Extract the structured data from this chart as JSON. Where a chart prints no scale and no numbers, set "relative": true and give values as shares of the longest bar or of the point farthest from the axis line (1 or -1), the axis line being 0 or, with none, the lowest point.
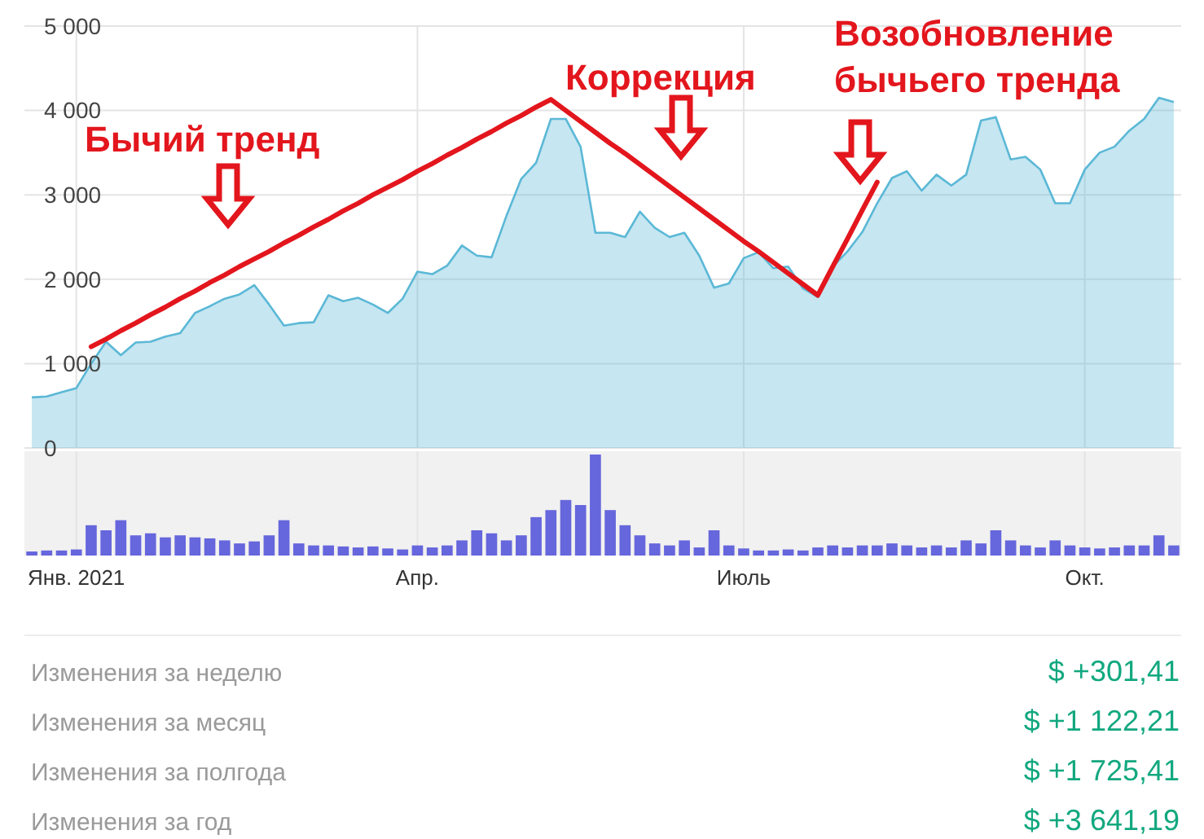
{
  "chart_data": [
    {
      "type": "area",
      "grid": true,
      "tick_labels": "y",
      "categories": [
        null,
        null,
        null,
        null,
        null,
        null,
        null,
        null,
        null,
        null,
        null,
        null,
        null,
        null,
        null,
        null,
        null,
        null,
        null,
        null,
        null,
        null,
        null,
        null,
        null,
        null,
        null,
        null,
        null,
        null,
        null,
        null,
        null,
        null,
        null,
        null,
        null,
        null,
        null,
        null,
        null,
        null,
        null,
        null,
        null,
        null,
        null,
        null,
        null,
        null,
        null,
        null,
        null,
        null,
        null,
        null,
        null,
        null,
        null,
        null,
        null,
        null,
        null,
        null,
        null,
        null,
        null,
        null,
        null,
        null,
        null,
        null,
        null,
        null,
        null,
        null,
        null,
        null
      ],
      "ylim": [
        0,
        5000
      ],
      "yticks": [
        {
          "value": 0,
          "label": "0"
        },
        {
          "value": 1000,
          "label": "1 000"
        },
        {
          "value": 2000,
          "label": "2 000"
        },
        {
          "value": 3000,
          "label": "3 000"
        },
        {
          "value": 4000,
          "label": "4 000"
        },
        {
          "value": 5000,
          "label": "5 000"
        }
      ],
      "annotations": [
        "Бычий тренд",
        "Коррекция",
        "Возобновление бычьего тренда"
      ],
      "series": [
        {
          "type": "area",
          "color": "#5bb8d6",
          "values": [
            600,
            610,
            660,
            710,
            1000,
            1260,
            1100,
            1250,
            1260,
            1320,
            1360,
            1600,
            1680,
            1770,
            1820,
            1930,
            1700,
            1450,
            1480,
            1490,
            1810,
            1740,
            1780,
            1700,
            1600,
            1770,
            2090,
            2060,
            2160,
            2400,
            2280,
            2260,
            2750,
            3190,
            3380,
            3900,
            3900,
            3570,
            2550,
            2550,
            2500,
            2800,
            2610,
            2500,
            2550,
            2280,
            1900,
            1950,
            2250,
            2320,
            2130,
            2150,
            1890,
            1790,
            2150,
            2330,
            2560,
            2900,
            3200,
            3280,
            3050,
            3240,
            3110,
            3240,
            3880,
            3920,
            3420,
            3450,
            3300,
            2900,
            2900,
            3300,
            3500,
            3570,
            3760,
            3900,
            4150,
            4100
          ]
        },
        {
          "type": "line",
          "color": "#e3161d",
          "values": [
            null,
            null,
            null,
            null,
            1200,
            1290,
            1390,
            1480,
            1580,
            1670,
            1770,
            1860,
            1960,
            2050,
            2150,
            2240,
            2330,
            2430,
            2520,
            2620,
            2710,
            2810,
            2900,
            3000,
            3090,
            3180,
            3280,
            3370,
            3470,
            3560,
            3660,
            3750,
            3850,
            3940,
            4040,
            4130,
            4000,
            3870,
            3740,
            3610,
            3490,
            3360,
            3230,
            3100,
            2970,
            2840,
            2710,
            2580,
            2450,
            2330,
            2200,
            2070,
            1940,
            1810,
            2150,
            2480,
            2820,
            3150,
            null,
            null,
            null,
            null,
            null,
            null,
            null,
            null,
            null,
            null,
            null,
            null,
            null,
            null,
            null,
            null,
            null,
            null,
            null,
            null
          ]
        }
      ]
    },
    {
      "type": "bar",
      "relative": true,
      "color": "#6666dd",
      "grid": "x",
      "categories": [
        null,
        null,
        null,
        "Янв. 2021",
        null,
        null,
        null,
        null,
        null,
        null,
        null,
        null,
        null,
        null,
        null,
        null,
        null,
        null,
        null,
        null,
        null,
        null,
        null,
        null,
        null,
        null,
        "Апр.",
        null,
        null,
        null,
        null,
        null,
        null,
        null,
        null,
        null,
        null,
        null,
        null,
        null,
        null,
        null,
        null,
        null,
        null,
        null,
        null,
        null,
        "Июль",
        null,
        null,
        null,
        null,
        null,
        null,
        null,
        null,
        null,
        null,
        null,
        null,
        null,
        null,
        null,
        null,
        null,
        null,
        null,
        null,
        null,
        null,
        "Окт.",
        null,
        null,
        null,
        null,
        null,
        null
      ],
      "values": [
        0.04,
        0.05,
        0.05,
        0.06,
        0.3,
        0.25,
        0.35,
        0.2,
        0.22,
        0.18,
        0.2,
        0.18,
        0.17,
        0.15,
        0.12,
        0.14,
        0.2,
        0.35,
        0.12,
        0.1,
        0.1,
        0.09,
        0.08,
        0.09,
        0.07,
        0.06,
        0.1,
        0.08,
        0.1,
        0.15,
        0.25,
        0.22,
        0.15,
        0.2,
        0.38,
        0.45,
        0.55,
        0.5,
        1,
        0.45,
        0.3,
        0.2,
        0.12,
        0.1,
        0.15,
        0.08,
        0.25,
        0.1,
        0.07,
        0.05,
        0.05,
        0.06,
        0.05,
        0.08,
        0.1,
        0.08,
        0.1,
        0.1,
        0.12,
        0.1,
        0.08,
        0.1,
        0.08,
        0.15,
        0.12,
        0.25,
        0.15,
        0.1,
        0.08,
        0.15,
        0.1,
        0.08,
        0.07,
        0.08,
        0.1,
        0.1,
        0.2,
        0.1
      ]
    },
    {
      "type": "other",
      "annotations": [
        "Изменения за неделю",
        "$ +301,41",
        "Изменения за месяц",
        "$ +1 122,21",
        "Изменения за полгода",
        "$ +1 725,41",
        "Изменения за год",
        "$ +3 641,19"
      ]
    }
  ]
}
